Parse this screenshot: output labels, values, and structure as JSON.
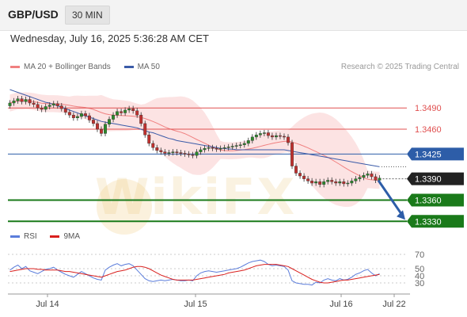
{
  "header": {
    "symbol": "GBP/USD",
    "timeframe": "30 MIN",
    "datetime": "Wednesday, July 16, 2025 5:36:28 AM CET"
  },
  "legend": {
    "ma20_label": "MA 20 + Bollinger Bands",
    "ma50_label": "MA 50",
    "credit": "Research © 2025 Trading Central",
    "rsi_label": "RSI",
    "ma9_label": "9MA"
  },
  "watermark": "WikiFX",
  "colors": {
    "ma20": "#f08080",
    "ma50": "#3b5ba8",
    "rsi": "#5b7ddb",
    "ma9": "#d9201e",
    "support": "#1a7a1a",
    "resistance": "#e05050",
    "pivot": "#2d5da8"
  },
  "chart_data": [
    {
      "type": "candlestick",
      "x_labels": [
        "Jul 14",
        "Jul 15",
        "Jul 16",
        "Jul 22"
      ],
      "ylim": [
        1.3318,
        1.3535
      ],
      "levels": [
        {
          "value": 1.349,
          "label": "1.3490",
          "kind": "resistance"
        },
        {
          "value": 1.346,
          "label": "1.3460",
          "kind": "resistance"
        },
        {
          "value": 1.3425,
          "label": "1.3425",
          "kind": "pivot"
        },
        {
          "value": 1.339,
          "label": "1.3390",
          "kind": "current"
        },
        {
          "value": 1.336,
          "label": "1.3360",
          "kind": "support"
        },
        {
          "value": 1.333,
          "label": "1.3330",
          "kind": "support"
        }
      ],
      "close": [
        1.3497,
        1.35,
        1.3503,
        1.3499,
        1.3502,
        1.3497,
        1.3495,
        1.349,
        1.3488,
        1.3492,
        1.3494,
        1.3496,
        1.3493,
        1.3489,
        1.3484,
        1.348,
        1.3476,
        1.3478,
        1.3482,
        1.3479,
        1.3473,
        1.3468,
        1.346,
        1.3454,
        1.3467,
        1.3474,
        1.348,
        1.3485,
        1.3483,
        1.3487,
        1.3489,
        1.3486,
        1.348,
        1.3468,
        1.3452,
        1.344,
        1.3434,
        1.343,
        1.3428,
        1.3426,
        1.3427,
        1.3428,
        1.3427,
        1.3426,
        1.3425,
        1.3424,
        1.3423,
        1.3428,
        1.3431,
        1.3433,
        1.3434,
        1.3433,
        1.3432,
        1.3433,
        1.3434,
        1.3435,
        1.3436,
        1.3437,
        1.3438,
        1.344,
        1.3444,
        1.3449,
        1.3452,
        1.3454,
        1.3455,
        1.3451,
        1.3449,
        1.3451,
        1.345,
        1.3449,
        1.3441,
        1.3408,
        1.3398,
        1.3394,
        1.339,
        1.3387,
        1.3384,
        1.3386,
        1.3382,
        1.3386,
        1.3388,
        1.3386,
        1.3384,
        1.3386,
        1.3383,
        1.3384,
        1.3387,
        1.339,
        1.3392,
        1.3395,
        1.3397,
        1.3393,
        1.3388,
        1.3391
      ],
      "open": [
        1.3493,
        1.3497,
        1.35,
        1.3503,
        1.3499,
        1.3502,
        1.3497,
        1.3495,
        1.349,
        1.3488,
        1.3492,
        1.3494,
        1.3496,
        1.3493,
        1.3489,
        1.3484,
        1.348,
        1.3476,
        1.3478,
        1.3482,
        1.3479,
        1.3473,
        1.3468,
        1.346,
        1.3454,
        1.3467,
        1.3474,
        1.348,
        1.3485,
        1.3483,
        1.3487,
        1.3489,
        1.3486,
        1.348,
        1.3468,
        1.3452,
        1.344,
        1.3434,
        1.343,
        1.3428,
        1.3426,
        1.3427,
        1.3428,
        1.3427,
        1.3426,
        1.3425,
        1.3424,
        1.3423,
        1.3428,
        1.3431,
        1.3433,
        1.3434,
        1.3433,
        1.3432,
        1.3433,
        1.3434,
        1.3435,
        1.3436,
        1.3437,
        1.3438,
        1.344,
        1.3444,
        1.3449,
        1.3452,
        1.3454,
        1.3455,
        1.3451,
        1.3449,
        1.3451,
        1.345,
        1.3449,
        1.3441,
        1.3408,
        1.3398,
        1.3394,
        1.339,
        1.3387,
        1.3384,
        1.3386,
        1.3382,
        1.3386,
        1.3388,
        1.3386,
        1.3384,
        1.3386,
        1.3383,
        1.3384,
        1.3387,
        1.339,
        1.3392,
        1.3395,
        1.3397,
        1.3393,
        1.3388
      ],
      "ma50": [
        1.3516,
        1.3514,
        1.3512,
        1.351,
        1.3508,
        1.3506,
        1.3504,
        1.3502,
        1.35,
        1.3498,
        1.3497,
        1.3495,
        1.3493,
        1.3491,
        1.3489,
        1.3487,
        1.3485,
        1.3483,
        1.3481,
        1.3479,
        1.3477,
        1.3475,
        1.3473,
        1.3471,
        1.347,
        1.3469,
        1.3468,
        1.3467,
        1.3466,
        1.3465,
        1.3464,
        1.3463,
        1.3462,
        1.346,
        1.3458,
        1.3456,
        1.3455,
        1.3453,
        1.3451,
        1.3449,
        1.3447,
        1.3446,
        1.3444,
        1.3443,
        1.3442,
        1.3441,
        1.344,
        1.3439,
        1.3438,
        1.3437,
        1.3436,
        1.3435,
        1.3434,
        1.3433,
        1.3433,
        1.3432,
        1.3432,
        1.3431,
        1.3431,
        1.3431,
        1.3431,
        1.3431,
        1.3431,
        1.3431,
        1.3431,
        1.3431,
        1.3431,
        1.3431,
        1.3431,
        1.3431,
        1.343,
        1.3429,
        1.3428,
        1.3427,
        1.3426,
        1.3425,
        1.3424,
        1.3423,
        1.3422,
        1.3421,
        1.342,
        1.3419,
        1.3418,
        1.3417,
        1.3416,
        1.3415,
        1.3414,
        1.3413,
        1.3412,
        1.3411,
        1.341,
        1.3409,
        1.3408,
        1.3407
      ]
    },
    {
      "type": "line",
      "name": "RSI",
      "ylim": [
        20,
        80
      ],
      "y_ticks": [
        70,
        50,
        40,
        30
      ],
      "rsi": [
        48,
        52,
        55,
        50,
        53,
        47,
        45,
        43,
        46,
        49,
        50,
        52,
        48,
        45,
        42,
        40,
        38,
        42,
        46,
        43,
        40,
        37,
        35,
        34,
        48,
        52,
        55,
        57,
        54,
        56,
        57,
        54,
        48,
        42,
        36,
        33,
        32,
        33,
        34,
        33,
        34,
        35,
        34,
        33,
        33,
        34,
        33,
        40,
        44,
        46,
        47,
        46,
        45,
        46,
        47,
        48,
        49,
        50,
        52,
        55,
        58,
        60,
        61,
        62,
        60,
        56,
        54,
        55,
        54,
        53,
        48,
        33,
        30,
        29,
        28,
        28,
        27,
        31,
        30,
        34,
        36,
        34,
        33,
        36,
        34,
        35,
        38,
        42,
        44,
        47,
        49,
        44,
        40,
        43
      ],
      "ma9": [
        46,
        47,
        48,
        49,
        50,
        50,
        50,
        49,
        49,
        48,
        48,
        48,
        48,
        47,
        46,
        46,
        45,
        44,
        43,
        42,
        41,
        40,
        39,
        38,
        40,
        42,
        44,
        46,
        47,
        48,
        50,
        52,
        53,
        53,
        52,
        50,
        47,
        44,
        41,
        39,
        37,
        35,
        34,
        34,
        34,
        34,
        34,
        35,
        36,
        37,
        38,
        39,
        40,
        41,
        42,
        44,
        45,
        46,
        47,
        48,
        50,
        52,
        54,
        55,
        56,
        56,
        56,
        56,
        55,
        54,
        53,
        50,
        47,
        44,
        41,
        38,
        35,
        33,
        31,
        30,
        30,
        31,
        32,
        33,
        34,
        34,
        35,
        36,
        37,
        38,
        39,
        40,
        41,
        42
      ]
    }
  ]
}
